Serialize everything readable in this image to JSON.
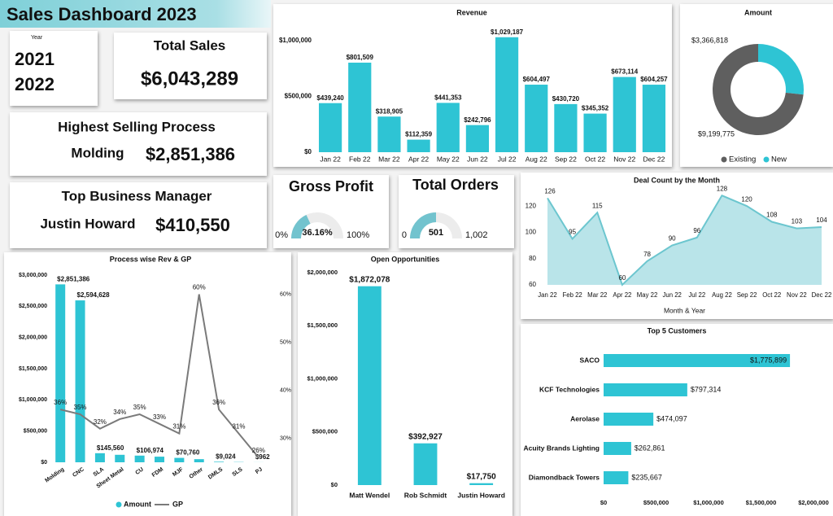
{
  "header": {
    "title": "Sales Dashboard 2023"
  },
  "slicer": {
    "label": "Year",
    "items": [
      "2021",
      "2022"
    ]
  },
  "cards": {
    "total_sales": {
      "label": "Total Sales",
      "value": "$6,043,289"
    },
    "highest_selling_process": {
      "label": "Highest Selling Process",
      "name": "Molding",
      "value": "$2,851,386"
    },
    "top_business_manager": {
      "label": "Top Business Manager",
      "name": "Justin Howard",
      "value": "$410,550"
    }
  },
  "chart_data": [
    {
      "type": "bar",
      "title": "Revenue",
      "categories": [
        "Jan 22",
        "Feb 22",
        "Mar 22",
        "Apr 22",
        "May 22",
        "Jun 22",
        "Jul 22",
        "Aug 22",
        "Sep 22",
        "Oct 22",
        "Nov 22",
        "Dec 22"
      ],
      "values": [
        439240,
        801509,
        318905,
        112359,
        441353,
        242796,
        1029187,
        604497,
        430720,
        345352,
        673114,
        604257
      ],
      "value_labels": [
        "$439,240",
        "$801,509",
        "$318,905",
        "$112,359",
        "$441,353",
        "$242,796",
        "$1,029,187",
        "$604,497",
        "$430,720",
        "$345,352",
        "$673,114",
        "$604,257"
      ],
      "color": "#2ec4d4",
      "ylim": [
        0,
        1100000
      ],
      "yticks": [
        {
          "value": 0,
          "label": "$0"
        },
        {
          "value": 500000,
          "label": "$500,000"
        },
        {
          "value": 1000000,
          "label": "$1,000,000"
        }
      ]
    },
    {
      "type": "donut",
      "title": "Amount",
      "categories": [
        "Existing",
        "New"
      ],
      "values": [
        9199775,
        3366818
      ],
      "value_labels": [
        "$9,199,775",
        "$3,366,818"
      ],
      "colors": [
        "#5f5f5f",
        "#2ec4d4"
      ],
      "legend": "bottom"
    },
    {
      "type": "gauge",
      "title": "Gross Profit",
      "value": 36.16,
      "value_label": "36.16%",
      "min": {
        "value": 0,
        "label": "0%"
      },
      "max": {
        "value": 100,
        "label": "100%"
      },
      "color": "#72c3ce"
    },
    {
      "type": "gauge",
      "title": "Total Orders",
      "value": 501,
      "min": 0,
      "max": {
        "value": 1002,
        "label": "1,002"
      },
      "color": "#72c3ce"
    },
    {
      "type": "area",
      "title": "Deal Count by the Month",
      "xlabel": "Month & Year",
      "categories": [
        "Jan 22",
        "Feb 22",
        "Mar 22",
        "Apr 22",
        "May 22",
        "Jun 22",
        "Jul 22",
        "Aug 22",
        "Sep 22",
        "Oct 22",
        "Nov 22",
        "Dec 22"
      ],
      "values": [
        126,
        95,
        115,
        60,
        78,
        90,
        96,
        128,
        120,
        108,
        103,
        104
      ],
      "color": "#6cc6cf",
      "ylim": [
        60,
        130
      ],
      "yticks": [
        60,
        80,
        100,
        120
      ]
    },
    {
      "type": "combo",
      "title": "Process wise Rev & GP",
      "categories": [
        "Molding",
        "CNC",
        "SLA",
        "Sheet Metal",
        "CU",
        "FDM",
        "MJF",
        "Other",
        "DMLS",
        "SLS",
        "PJ"
      ],
      "series": [
        {
          "name": "Amount",
          "type": "bar",
          "color": "#2ec4d4",
          "values": [
            2851386,
            2594628,
            145560,
            120000,
            106974,
            90000,
            70760,
            50000,
            9024,
            4000,
            962
          ],
          "value_labels": [
            "$2,851,386",
            "$2,594,628",
            "$145,560",
            null,
            "$106,974",
            null,
            "$70,760",
            null,
            "$9,024",
            null,
            "$962"
          ]
        },
        {
          "name": "GP",
          "type": "line",
          "axis": "y2",
          "color": "#7a7a7a",
          "values": [
            36,
            35,
            32,
            34,
            35,
            33,
            31,
            60,
            36,
            31,
            26
          ],
          "value_labels": [
            "36%",
            "35%",
            "32%",
            "34%",
            "35%",
            "33%",
            "31%",
            "60%",
            "36%",
            "31%",
            "26%"
          ]
        }
      ],
      "ylim": [
        0,
        3000000
      ],
      "yticks": [
        {
          "value": 0,
          "label": "$0"
        },
        {
          "value": 500000,
          "label": "$500,000"
        },
        {
          "value": 1000000,
          "label": "$1,000,000"
        },
        {
          "value": 1500000,
          "label": "$1,500,000"
        },
        {
          "value": 2000000,
          "label": "$2,000,000"
        },
        {
          "value": 2500000,
          "label": "$2,500,000"
        },
        {
          "value": 3000000,
          "label": "$3,000,000"
        }
      ],
      "y2lim": [
        25,
        64
      ],
      "y2ticks": [
        {
          "value": 30,
          "label": "30%"
        },
        {
          "value": 40,
          "label": "40%"
        },
        {
          "value": 50,
          "label": "50%"
        },
        {
          "value": 60,
          "label": "60%"
        }
      ],
      "legend": "bottom"
    },
    {
      "type": "bar",
      "title": "Open Opportunities",
      "categories": [
        "Matt Wendel",
        "Rob Schmidt",
        "Justin Howard"
      ],
      "values": [
        1872078,
        392927,
        17750
      ],
      "value_labels": [
        "$1,872,078",
        "$392,927",
        "$17,750"
      ],
      "color": "#2ec4d4",
      "ylim": [
        0,
        2000000
      ],
      "yticks": [
        {
          "value": 0,
          "label": "$0"
        },
        {
          "value": 500000,
          "label": "$500,000"
        },
        {
          "value": 1000000,
          "label": "$1,000,000"
        },
        {
          "value": 1500000,
          "label": "$1,500,000"
        },
        {
          "value": 2000000,
          "label": "$2,000,000"
        }
      ]
    },
    {
      "type": "barh",
      "title": "Top 5 Customers",
      "categories": [
        "SACO",
        "KCF Technologies",
        "Aerolase",
        "Acuity Brands Lighting",
        "Diamondback Towers"
      ],
      "values": [
        1775899,
        797314,
        474097,
        262861,
        235667
      ],
      "value_labels": [
        "$1,775,899",
        "$797,314",
        "$474,097",
        "$262,861",
        "$235,667"
      ],
      "color": "#2ec4d4",
      "xlim": [
        0,
        2000000
      ],
      "xticks": [
        {
          "value": 0,
          "label": "$0"
        },
        {
          "value": 500000,
          "label": "$500,000"
        },
        {
          "value": 1000000,
          "label": "$1,000,000"
        },
        {
          "value": 1500000,
          "label": "$1,500,000"
        },
        {
          "value": 2000000,
          "label": "$2,000,000"
        }
      ]
    }
  ]
}
